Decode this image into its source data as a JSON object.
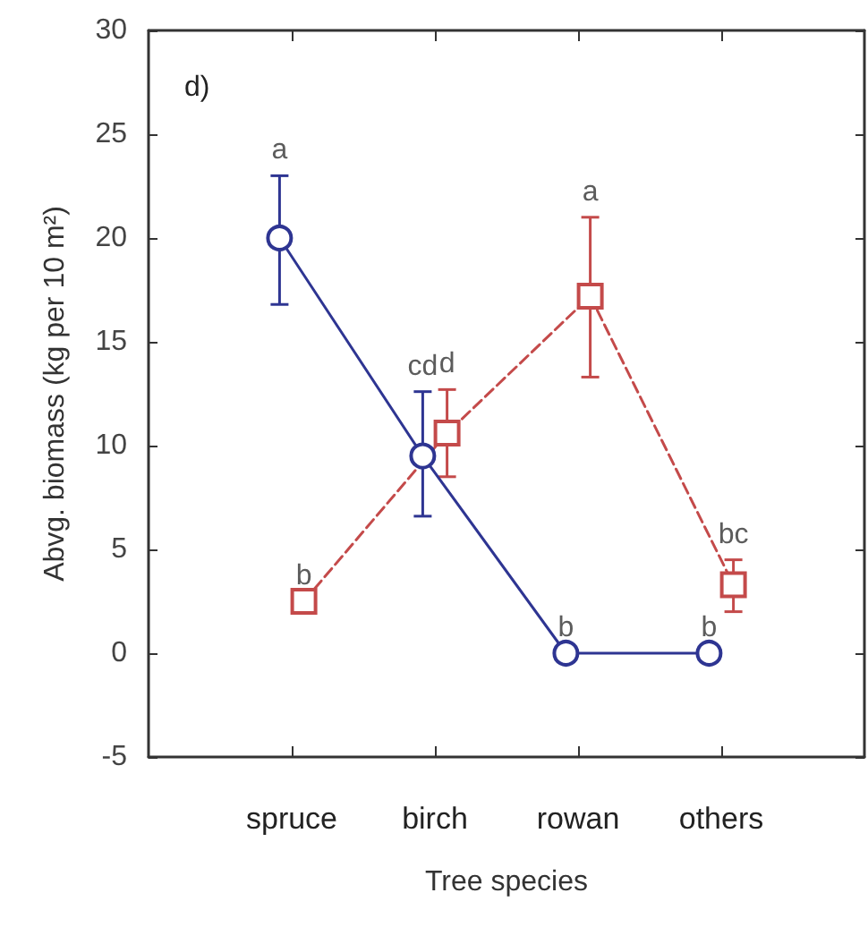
{
  "chart_data": {
    "type": "line",
    "title": "d)",
    "xlabel": "Tree species",
    "ylabel": "Abvg. biomass (kg per 10 m²)",
    "categories": [
      "spruce",
      "birch",
      "rowan",
      "others"
    ],
    "ylim": [
      -5,
      30
    ],
    "yticks": [
      -5,
      0,
      5,
      10,
      15,
      20,
      25,
      30
    ],
    "series": [
      {
        "color": "#2e3592",
        "marker": "circle",
        "line_style": "solid",
        "values": [
          20,
          9.5,
          0,
          0
        ],
        "errors": [
          [
            16.8,
            23
          ],
          [
            6.6,
            12.6
          ],
          null,
          null
        ],
        "value_labels": [
          "a",
          "cd",
          "b",
          "b"
        ]
      },
      {
        "color": "#c44a4a",
        "marker": "square",
        "line_style": "dashed",
        "values": [
          2.5,
          10.6,
          17.2,
          3.3
        ],
        "errors": [
          null,
          [
            8.5,
            12.7
          ],
          [
            13.3,
            21
          ],
          [
            2,
            4.5
          ]
        ],
        "value_labels": [
          "b",
          "d",
          "a",
          "bc"
        ]
      }
    ]
  }
}
